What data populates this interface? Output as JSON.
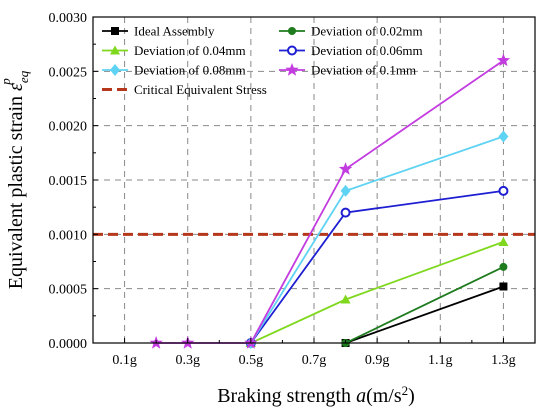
{
  "chart_data": {
    "type": "line",
    "xlabel_prefix": "Braking strength ",
    "xlabel_var": "a",
    "xlabel_unit_open": "(m/s",
    "xlabel_unit_sup": "2",
    "xlabel_unit_close": ")",
    "ylabel_text": "Equivalent plastic strain ",
    "ylabel_symbol": "ε",
    "ylabel_sub": "eq",
    "ylabel_sup": "p",
    "xlim": [
      0,
      1.4
    ],
    "ylim": [
      0,
      0.003
    ],
    "x_ticks": [
      {
        "value": 0.1,
        "label": "0.1g"
      },
      {
        "value": 0.3,
        "label": "0.3g"
      },
      {
        "value": 0.5,
        "label": "0.5g"
      },
      {
        "value": 0.7,
        "label": "0.7g"
      },
      {
        "value": 0.9,
        "label": "0.9g"
      },
      {
        "value": 1.1,
        "label": "1.1g"
      },
      {
        "value": 1.3,
        "label": "1.3g"
      }
    ],
    "y_ticks": [
      {
        "value": 0,
        "label": "0.0000"
      },
      {
        "value": 0.0005,
        "label": "0.0005"
      },
      {
        "value": 0.001,
        "label": "0.0010"
      },
      {
        "value": 0.0015,
        "label": "0.0015"
      },
      {
        "value": 0.002,
        "label": "0.0020"
      },
      {
        "value": 0.0025,
        "label": "0.0025"
      },
      {
        "value": 0.003,
        "label": "0.0030"
      }
    ],
    "grid": true,
    "legend_position": "top-left",
    "series": [
      {
        "name": "Ideal Assembly",
        "color": "#000000",
        "marker": "square",
        "x": [
          0.8,
          1.3
        ],
        "y": [
          0,
          0.00052
        ]
      },
      {
        "name": "Deviation of 0.02mm",
        "color": "#1e7b1e",
        "marker": "circle",
        "x": [
          0.8,
          1.3
        ],
        "y": [
          0,
          0.0007
        ]
      },
      {
        "name": "Deviation of 0.04mm",
        "color": "#7fd81e",
        "marker": "triangle",
        "x": [
          0.5,
          0.8,
          1.3
        ],
        "y": [
          0,
          0.0004,
          0.00093
        ]
      },
      {
        "name": "Deviation of 0.06mm",
        "color": "#1e1ed2",
        "marker": "circle-open",
        "x": [
          0.5,
          0.8,
          1.3
        ],
        "y": [
          0,
          0.0012,
          0.0014
        ]
      },
      {
        "name": "Deviation of 0.08mm",
        "color": "#5fd3f3",
        "marker": "diamond",
        "x": [
          0.5,
          0.8,
          1.3
        ],
        "y": [
          0,
          0.0014,
          0.0019
        ]
      },
      {
        "name": "Deviation of 0.1mm",
        "color": "#c33ce0",
        "marker": "star",
        "x": [
          0.2,
          0.3,
          0.5,
          0.8,
          1.3
        ],
        "y": [
          0,
          0,
          0,
          0.0016,
          0.0026
        ]
      }
    ],
    "reference_line": {
      "name": "Critical Equivalent Stress",
      "y": 0.001,
      "color": "#b5371c",
      "style": "dashed"
    }
  }
}
